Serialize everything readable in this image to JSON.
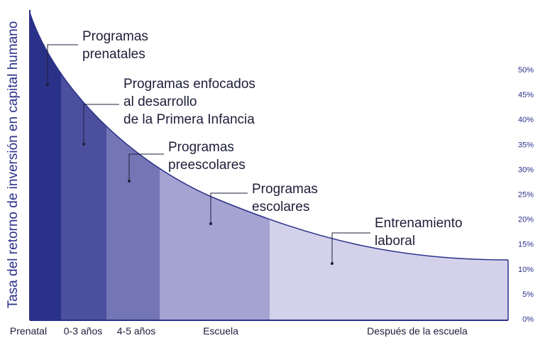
{
  "chart_data": {
    "type": "area",
    "ylabel": "Tasa del retorno de inversión en capital humano",
    "y_ticks": [
      "0%",
      "5%",
      "10%",
      "15%",
      "20%",
      "25%",
      "30%",
      "35%",
      "40%",
      "45%",
      "50%"
    ],
    "ylim": [
      0,
      50
    ],
    "grid": false,
    "legend": "none",
    "segments": [
      {
        "label": "Prenatal",
        "color": "#2a3188"
      },
      {
        "label": "0-3 años",
        "color": "#4c4f9d"
      },
      {
        "label": "4-5 años",
        "color": "#7475b4"
      },
      {
        "label": "Escuela",
        "color": "#a5a3d2"
      },
      {
        "label": "Después de la escuela",
        "color": "#d3d2ea"
      }
    ],
    "annotations": [
      {
        "lines": [
          "Programas",
          "prenatales"
        ]
      },
      {
        "lines": [
          "Programas enfocados",
          "al desarrollo",
          "de la Primera Infancia"
        ]
      },
      {
        "lines": [
          "Programas",
          "preescolares"
        ]
      },
      {
        "lines": [
          "Programas",
          "escolares"
        ]
      },
      {
        "lines": [
          "Entrenamiento",
          "laboral"
        ]
      }
    ],
    "colors": {
      "axis": "#2a3188",
      "text": "#1e1e3a"
    }
  }
}
